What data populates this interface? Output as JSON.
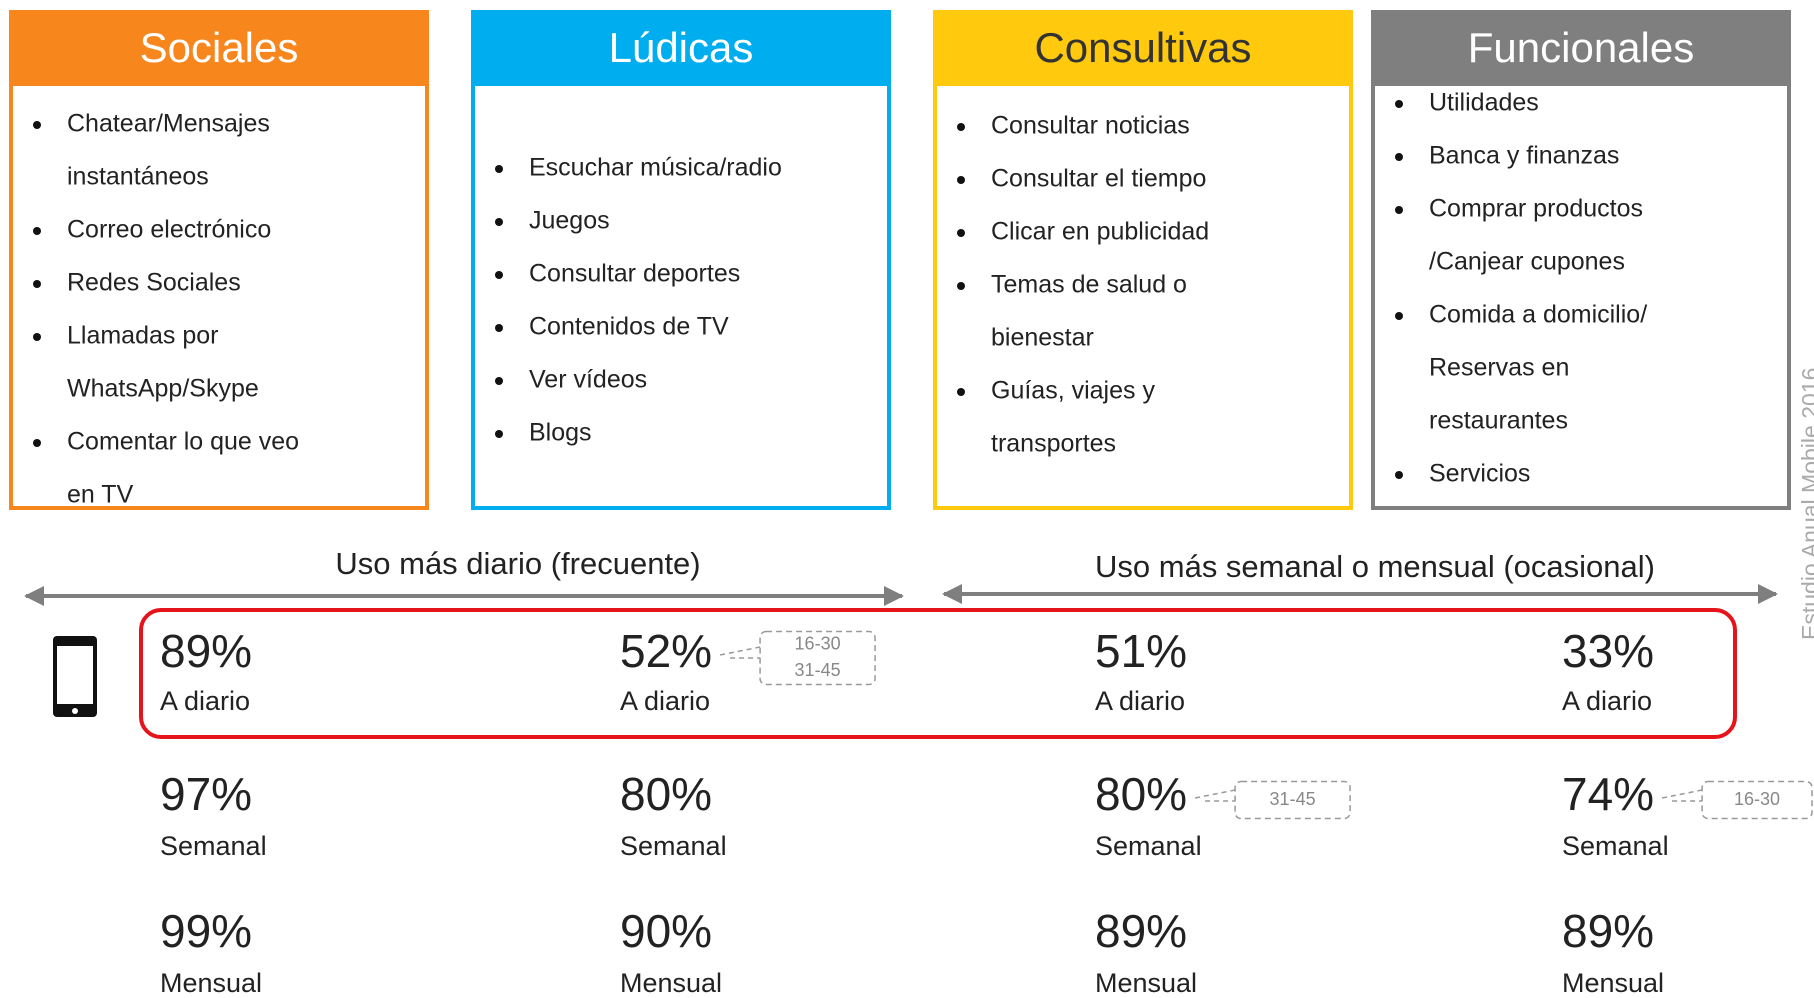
{
  "columns": [
    {
      "title": "Sociales",
      "color": "#f7861c",
      "title_color": "#ffffff",
      "items": [
        [
          "Chatear/Mensajes",
          "instantáneos"
        ],
        [
          "Correo electrónico"
        ],
        [
          "Redes Sociales"
        ],
        [
          "Llamadas por",
          "WhatsApp/Skype"
        ],
        [
          "Comentar lo que veo",
          "en TV"
        ]
      ]
    },
    {
      "title": "Lúdicas",
      "color": "#00aeef",
      "title_color": "#ffffff",
      "items": [
        [
          "Escuchar música/radio"
        ],
        [
          "Juegos"
        ],
        [
          "Consultar deportes"
        ],
        [
          "Contenidos de TV"
        ],
        [
          "Ver vídeos"
        ],
        [
          "Blogs"
        ]
      ]
    },
    {
      "title": "Consultivas",
      "color": "#ffc90e",
      "title_color": "#333333",
      "items": [
        [
          "Consultar noticias"
        ],
        [
          "Consultar el tiempo"
        ],
        [
          "Clicar en publicidad"
        ],
        [
          "Temas de salud o",
          "bienestar"
        ],
        [
          "Guías, viajes y",
          "transportes"
        ]
      ]
    },
    {
      "title": "Funcionales",
      "color": "#7f7f7f",
      "title_color": "#ffffff",
      "items": [
        [
          "Utilidades"
        ],
        [
          "Banca y finanzas"
        ],
        [
          "Comprar productos",
          "/Canjear cupones"
        ],
        [
          "Comida a domicilio/",
          "Reservas en",
          "restaurantes"
        ],
        [
          "Servicios"
        ]
      ]
    }
  ],
  "frequency": {
    "left": "Uso más diario (frecuente)",
    "right": "Uso más semanal o mensual (ocasional)"
  },
  "stats": [
    [
      {
        "value": "89%",
        "label": "A diario"
      },
      {
        "value": "97%",
        "label": "Semanal"
      },
      {
        "value": "99%",
        "label": "Mensual"
      }
    ],
    [
      {
        "value": "52%",
        "label": "A diario",
        "ages": [
          "16-30",
          "31-45"
        ]
      },
      {
        "value": "80%",
        "label": "Semanal"
      },
      {
        "value": "90%",
        "label": "Mensual"
      }
    ],
    [
      {
        "value": "51%",
        "label": "A diario"
      },
      {
        "value": "80%",
        "label": "Semanal",
        "ages": [
          "31-45"
        ]
      },
      {
        "value": "89%",
        "label": "Mensual"
      }
    ],
    [
      {
        "value": "33%",
        "label": "A diario"
      },
      {
        "value": "74%",
        "label": "Semanal",
        "ages": [
          "16-30"
        ]
      },
      {
        "value": "89%",
        "label": "Mensual"
      }
    ]
  ],
  "source": "Estudio Anual Mobile 2016"
}
